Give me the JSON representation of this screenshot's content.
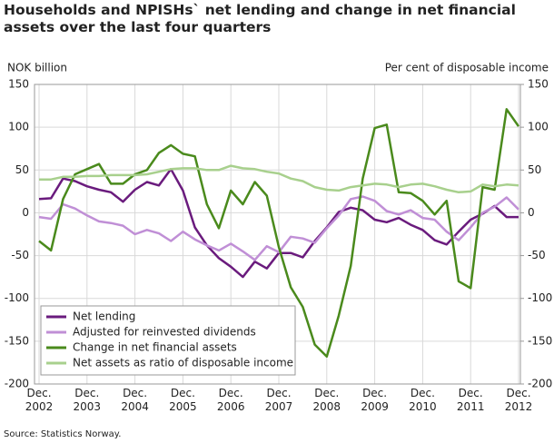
{
  "chart_data": {
    "type": "line",
    "title": "Households and NPISHs` net lending and change in net financial assets over the last four quarters",
    "y_label": "NOK billion",
    "y2_label": "Per cent of disposable income",
    "source": "Source: Statistics Norway.",
    "categories": [
      "Dec. 2002",
      null,
      null,
      null,
      "Dec. 2003",
      null,
      null,
      null,
      "Dec. 2004",
      null,
      null,
      null,
      "Dec. 2005",
      null,
      null,
      null,
      "Dec. 2006",
      null,
      null,
      null,
      "Dec. 2007",
      null,
      null,
      null,
      "Dec. 2008",
      null,
      null,
      null,
      "Dec. 2009",
      null,
      null,
      null,
      "Dec. 2010",
      null,
      null,
      null,
      "Dec. 2011",
      null,
      null,
      null,
      "Dec. 2012"
    ],
    "ylim": [
      -200,
      150
    ],
    "yticks": [
      -200,
      -150,
      -100,
      -50,
      0,
      50,
      100,
      150
    ],
    "y2lim": [
      -200,
      150
    ],
    "y2ticks": [
      -200,
      -150,
      -100,
      -50,
      0,
      50,
      100,
      150
    ],
    "grid": true,
    "legend": "lower left",
    "series": [
      {
        "name": "Net lending",
        "color": "#6a1b7d",
        "values": [
          16,
          17,
          40,
          37,
          31,
          27,
          24,
          13,
          27,
          36,
          32,
          51,
          26,
          -17,
          -38,
          -53,
          -63,
          -75,
          -57,
          -65,
          -47,
          -47,
          -52,
          -33,
          -17,
          1,
          6,
          3,
          -8,
          -11,
          -6,
          -14,
          -20,
          -32,
          -37,
          -22,
          -8,
          -1,
          8,
          -5,
          -5
        ]
      },
      {
        "name": "Adjusted for reinvested dividends",
        "color": "#c08fd6",
        "values": [
          -5,
          -7,
          10,
          5,
          -3,
          -10,
          -12,
          -15,
          -25,
          -20,
          -24,
          -33,
          -22,
          -31,
          -38,
          -44,
          -36,
          -45,
          -55,
          -39,
          -46,
          -28,
          -30,
          -35,
          -18,
          -3,
          16,
          19,
          14,
          2,
          -2,
          3,
          -6,
          -8,
          -22,
          -32,
          -17,
          0,
          7,
          18,
          4
        ]
      },
      {
        "name": "Change in net financial assets",
        "color": "#4a8a1c",
        "values": [
          -33,
          -44,
          16,
          45,
          51,
          57,
          34,
          34,
          45,
          50,
          70,
          79,
          69,
          66,
          10,
          -18,
          26,
          10,
          36,
          20,
          -40,
          -87,
          -110,
          -154,
          -168,
          -120,
          -62,
          40,
          99,
          103,
          24,
          23,
          14,
          -2,
          14,
          -80,
          -88,
          30,
          27,
          121,
          101
        ]
      },
      {
        "name": "Net assets as ratio of disposable income",
        "color": "#a8d08d",
        "axis": "y2",
        "values": [
          39,
          39,
          42,
          42,
          43,
          43,
          44,
          44,
          44,
          45,
          48,
          51,
          52,
          52,
          50,
          50,
          55,
          52,
          51,
          48,
          46,
          40,
          37,
          30,
          27,
          26,
          30,
          32,
          34,
          33,
          30,
          33,
          34,
          31,
          27,
          24,
          25,
          33,
          31,
          33,
          32
        ]
      }
    ]
  }
}
